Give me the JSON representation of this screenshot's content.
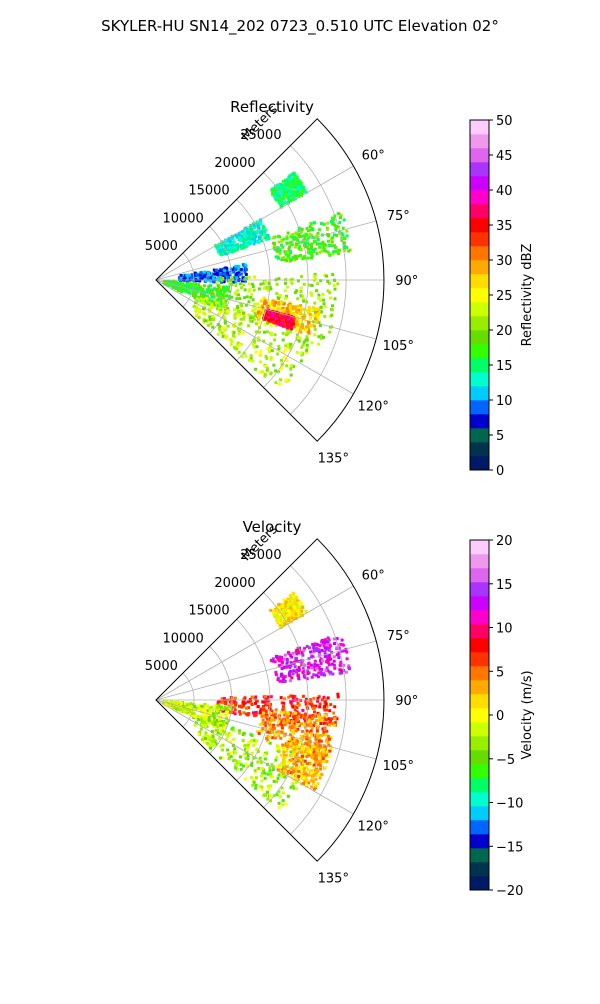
{
  "figure": {
    "title": "SKYLER-HU  SN14_202  0723_0.510 UTC Elevation 02°"
  },
  "chart_data": [
    {
      "type": "heatmap",
      "subtype": "polar-sector",
      "title": "Reflectivity",
      "radial_label": "Meters",
      "radial_range": [
        0,
        30000
      ],
      "radial_ticks": [
        5000,
        10000,
        15000,
        20000,
        25000
      ],
      "radial_tick_labels": [
        "5000",
        "10000",
        "15000",
        "20000",
        "25000"
      ],
      "azimuth_range": [
        45,
        135
      ],
      "azimuth_ticks": [
        60,
        75,
        90,
        105,
        120,
        135
      ],
      "azimuth_tick_labels": [
        "60°",
        "75°",
        "90°",
        "105°",
        "120°",
        "135°"
      ],
      "grid": true,
      "colorbar": {
        "label": "Reflectivity dBZ",
        "range": [
          0,
          50
        ],
        "ticks": [
          0,
          5,
          10,
          15,
          20,
          25,
          30,
          35,
          40,
          45,
          50
        ],
        "tick_labels": [
          "0",
          "5",
          "10",
          "15",
          "20",
          "25",
          "30",
          "35",
          "40",
          "45",
          "50"
        ],
        "colors": [
          "#001a66",
          "#00334d",
          "#00664d",
          "#0000cc",
          "#0066ff",
          "#00ccff",
          "#00ffcc",
          "#00ff66",
          "#33ff00",
          "#66dd00",
          "#99ee00",
          "#ccff00",
          "#ffff00",
          "#ffdd00",
          "#ffaa00",
          "#ff7700",
          "#ff3300",
          "#ff0000",
          "#ff0066",
          "#ff00cc",
          "#cc00ff",
          "#aa33ff",
          "#dd66ee",
          "#ee99ee",
          "#ffccff"
        ]
      },
      "echo_regions": [
        {
          "az": [
            52,
            60
          ],
          "r": [
            19000,
            23000
          ],
          "value": 15
        },
        {
          "az": [
            60,
            70
          ],
          "r": [
            9000,
            16000
          ],
          "value": 13
        },
        {
          "az": [
            70,
            82
          ],
          "r": [
            16000,
            26000
          ],
          "value": 18
        },
        {
          "az": [
            80,
            92
          ],
          "r": [
            3000,
            12000
          ],
          "value": 9
        },
        {
          "az": [
            88,
            112
          ],
          "r": [
            8000,
            24000
          ],
          "value": 21
        },
        {
          "az": [
            95,
            115
          ],
          "r": [
            1000,
            10000
          ],
          "value": 17
        },
        {
          "az": [
            110,
            132
          ],
          "r": [
            6000,
            22000
          ],
          "value": 22
        },
        {
          "az": [
            100,
            110
          ],
          "r": [
            14000,
            22000
          ],
          "value": 28
        },
        {
          "az": [
            105,
            110
          ],
          "r": [
            15000,
            19000
          ],
          "value": 36
        }
      ]
    },
    {
      "type": "heatmap",
      "subtype": "polar-sector",
      "title": "Velocity",
      "radial_label": "Meters",
      "radial_range": [
        0,
        30000
      ],
      "radial_ticks": [
        5000,
        10000,
        15000,
        20000,
        25000
      ],
      "radial_tick_labels": [
        "5000",
        "10000",
        "15000",
        "20000",
        "25000"
      ],
      "azimuth_range": [
        45,
        135
      ],
      "azimuth_ticks": [
        60,
        75,
        90,
        105,
        120,
        135
      ],
      "azimuth_tick_labels": [
        "60°",
        "75°",
        "90°",
        "105°",
        "120°",
        "135°"
      ],
      "grid": true,
      "colorbar": {
        "label": "Velocity (m/s)",
        "range": [
          -20,
          20
        ],
        "ticks": [
          -20,
          -15,
          -10,
          -5,
          0,
          5,
          10,
          15,
          20
        ],
        "tick_labels": [
          "−20",
          "−15",
          "−10",
          "−5",
          "0",
          "5",
          "10",
          "15",
          "20"
        ],
        "colors": [
          "#001a66",
          "#00334d",
          "#00664d",
          "#0000cc",
          "#0066ff",
          "#00ccff",
          "#00ffcc",
          "#00ff66",
          "#33ff00",
          "#66dd00",
          "#99ee00",
          "#ccff00",
          "#ffff00",
          "#ffdd00",
          "#ffaa00",
          "#ff7700",
          "#ff3300",
          "#ff0000",
          "#ff0066",
          "#ff00cc",
          "#cc00ff",
          "#aa33ff",
          "#dd66ee",
          "#ee99ee",
          "#ffccff"
        ]
      },
      "echo_regions": [
        {
          "az": [
            52,
            60
          ],
          "r": [
            19000,
            23000
          ],
          "value": 1
        },
        {
          "az": [
            70,
            82
          ],
          "r": [
            16000,
            26000
          ],
          "value": 13
        },
        {
          "az": [
            88,
            100
          ],
          "r": [
            8000,
            24000
          ],
          "value": 7
        },
        {
          "az": [
            95,
            110
          ],
          "r": [
            14000,
            24000
          ],
          "value": 4
        },
        {
          "az": [
            95,
            115
          ],
          "r": [
            1000,
            10000
          ],
          "value": -2
        },
        {
          "az": [
            110,
            132
          ],
          "r": [
            6000,
            22000
          ],
          "value": -3
        },
        {
          "az": [
            105,
            120
          ],
          "r": [
            18000,
            24000
          ],
          "value": 3
        }
      ]
    }
  ]
}
